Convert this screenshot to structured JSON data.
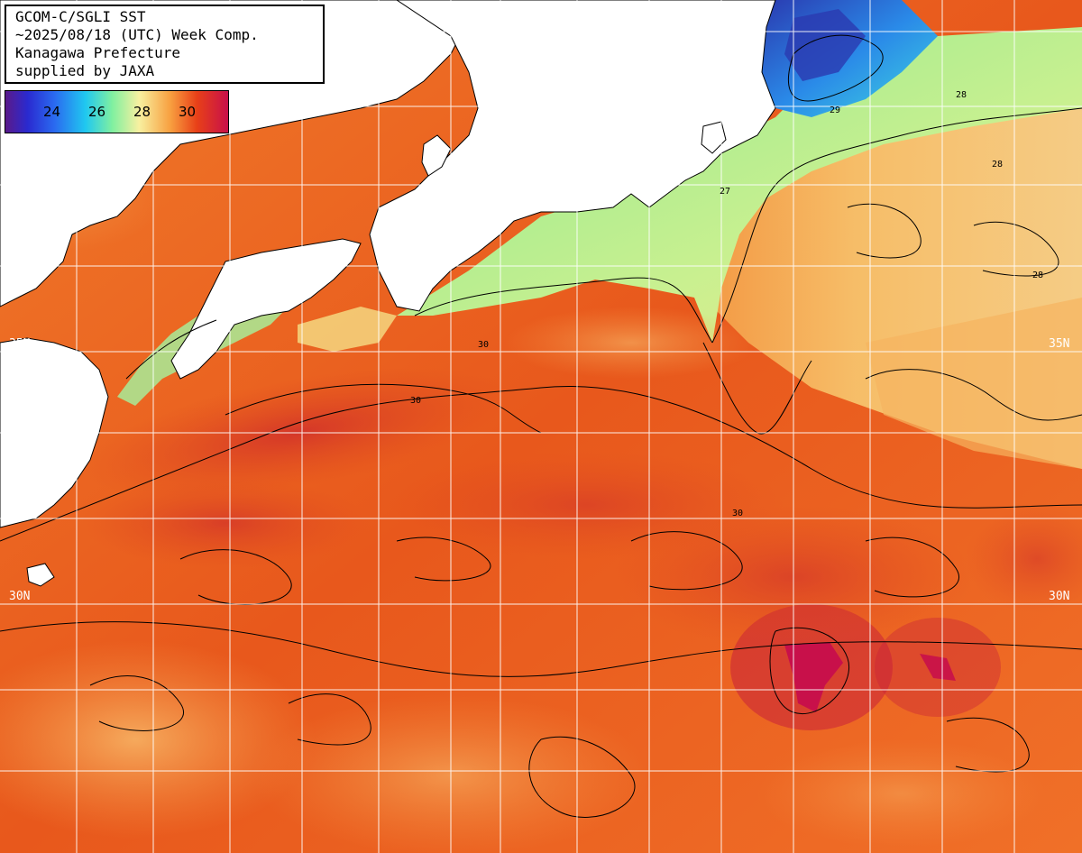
{
  "title": {
    "line1": "GCOM-C/SGLI SST",
    "line2": "~2025/08/18 (UTC) Week Comp.",
    "line3": "Kanagawa Prefecture",
    "line4": "supplied by JAXA"
  },
  "legend": {
    "ticks": [
      "24",
      "26",
      "28",
      "30"
    ],
    "colors": [
      "#5a1a8a",
      "#2a2ad0",
      "#2a6af0",
      "#20c8f0",
      "#80f0a0",
      "#f8f0a0",
      "#f8a040",
      "#e84018",
      "#c8104a"
    ]
  },
  "grid": {
    "lat_labels": [
      {
        "text": "35N",
        "side": "left"
      },
      {
        "text": "35N",
        "side": "right"
      },
      {
        "text": "30N",
        "side": "left"
      },
      {
        "text": "30N",
        "side": "right"
      }
    ]
  },
  "contour_labels": [
    "28",
    "28",
    "28",
    "30",
    "30",
    "30",
    "29",
    "27"
  ]
}
